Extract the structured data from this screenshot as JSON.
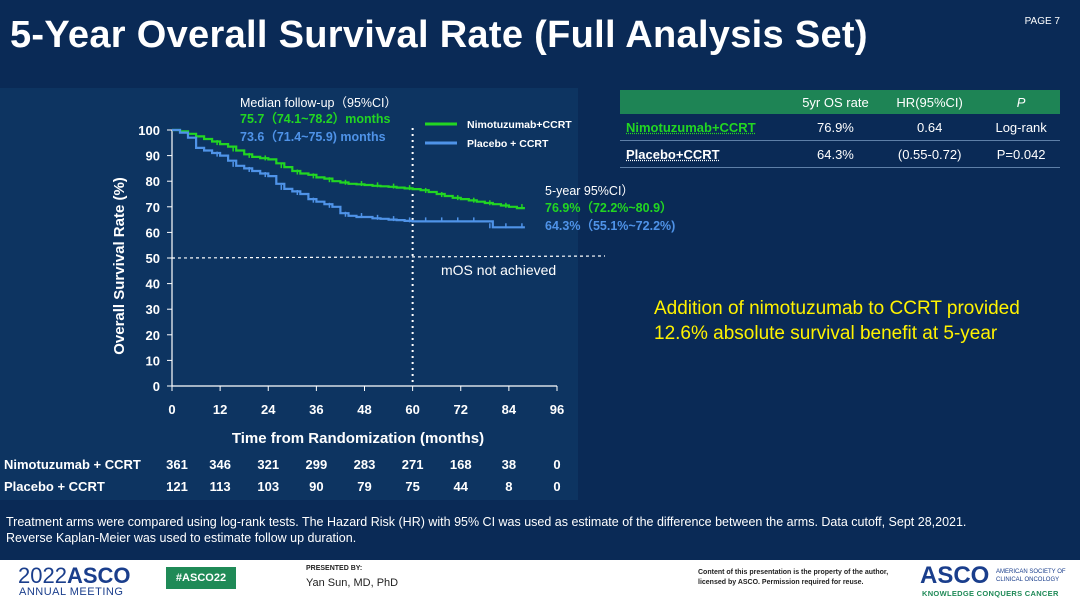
{
  "slide": {
    "title": "5-Year Overall Survival Rate (Full Analysis Set)",
    "page": "PAGE 7",
    "highlight_line1": "Addition of nimotuzumab to CCRT provided",
    "highlight_line2": "12.6% absolute survival benefit at 5-year",
    "footnote_line1": "Treatment arms were compared using log-rank tests. The Hazard Risk (HR) with 95% CI was used as estimate of the difference between the arms. Data cutoff, Sept 28,2021.",
    "footnote_line2": "Reverse Kaplan-Meier was used to estimate follow up duration."
  },
  "colors": {
    "nimo": "#22d622",
    "placebo": "#4f93e8",
    "highlight": "#fff200",
    "table_header": "#1e8455"
  },
  "table": {
    "headers": [
      "",
      "5yr OS rate",
      "HR(95%CI)",
      "P"
    ],
    "rows": [
      {
        "arm": "Nimotuzumab+CCRT",
        "rate": "76.9%",
        "hr": "0.64",
        "p": "Log-rank"
      },
      {
        "arm": "Placebo+CCRT",
        "rate": "64.3%",
        "hr": "(0.55-0.72)",
        "p": "P=0.042"
      }
    ]
  },
  "chart_data": {
    "type": "line",
    "subtype": "kaplan-meier",
    "xlabel": "Time from Randomization (months)",
    "ylabel": "Overall Survival Rate (%)",
    "xlim": [
      0,
      96
    ],
    "ylim": [
      0,
      100
    ],
    "xticks": [
      0,
      12,
      24,
      36,
      48,
      60,
      72,
      84,
      96
    ],
    "yticks": [
      0,
      10,
      20,
      30,
      40,
      50,
      60,
      70,
      80,
      90,
      100
    ],
    "reference_lines": {
      "y50": 50,
      "x60": 60
    },
    "mos_label": "mOS  not achieved",
    "followup": {
      "heading": "Median follow-up（95%CI）",
      "nimo": "75.7（74.1~78.2）months",
      "placebo": "73.6（71.4~75.9) months"
    },
    "five_year": {
      "heading": "5-year 95%CI）",
      "nimo": "76.9%（72.2%~80.9）",
      "placebo": "64.3%（55.1%~72.2%)"
    },
    "legend": [
      "Nimotuzumab+CCRT",
      "Placebo + CCRT"
    ],
    "series": [
      {
        "name": "Nimotuzumab+CCRT",
        "x": [
          0,
          2,
          4,
          6,
          8,
          10,
          12,
          14,
          16,
          18,
          20,
          22,
          24,
          26,
          28,
          30,
          32,
          34,
          36,
          38,
          40,
          42,
          44,
          46,
          48,
          50,
          52,
          54,
          56,
          58,
          60,
          62,
          64,
          66,
          68,
          70,
          72,
          74,
          76,
          78,
          80,
          82,
          84,
          86,
          88
        ],
        "y": [
          100,
          99.5,
          98.5,
          97.5,
          96.5,
          95.5,
          94.5,
          93.5,
          92,
          90.5,
          89.5,
          89,
          88.5,
          87,
          85.5,
          84,
          83,
          82.5,
          81.5,
          81,
          80,
          79.5,
          79,
          78.8,
          78.5,
          78.2,
          78,
          77.8,
          77.5,
          77.2,
          76.9,
          76.5,
          75.8,
          75,
          74.2,
          73.5,
          73,
          72.5,
          72,
          71.5,
          71,
          70.5,
          70,
          69.5,
          69.5
        ]
      },
      {
        "name": "Placebo + CCRT",
        "x": [
          0,
          2,
          4,
          6,
          8,
          10,
          12,
          14,
          16,
          18,
          20,
          22,
          24,
          26,
          28,
          30,
          32,
          34,
          36,
          38,
          40,
          42,
          44,
          46,
          48,
          50,
          52,
          54,
          56,
          58,
          60,
          62,
          64,
          66,
          68,
          70,
          72,
          74,
          76,
          78,
          80,
          82,
          84,
          86,
          88
        ],
        "y": [
          100,
          99,
          97,
          93,
          92,
          91,
          90,
          88,
          86,
          85,
          84,
          83,
          82,
          79,
          77,
          76,
          75,
          73,
          72,
          71,
          70,
          67.5,
          66.5,
          66,
          66,
          65.5,
          65.3,
          65,
          64.8,
          64.5,
          64.3,
          64.3,
          64.3,
          64.3,
          64.3,
          64.3,
          64.3,
          64.3,
          64.3,
          64.3,
          62,
          62,
          62,
          62,
          62
        ]
      }
    ],
    "risk_table": {
      "rows": [
        {
          "label": "Nimotuzumab + CCRT",
          "values": [
            "361",
            "346",
            "321",
            "299",
            "283",
            "271",
            "168",
            "38",
            "0"
          ]
        },
        {
          "label": "Placebo + CCRT",
          "values": [
            "121",
            "113",
            "103",
            "90",
            "79",
            "75",
            "44",
            "8",
            "0"
          ]
        }
      ]
    }
  },
  "footer": {
    "year": "2022",
    "org": "ASCO",
    "meeting": "ANNUAL MEETING",
    "hashtag": "#ASCO22",
    "presented_by": "PRESENTED BY:",
    "presenter": "Yan Sun, MD, PhD",
    "rights": "Content of this presentation is the property of the author, licensed by ASCO. Permission required for reuse.",
    "logo": "ASCO",
    "society": "AMERICAN SOCIETY OF CLINICAL ONCOLOGY",
    "tagline": "KNOWLEDGE CONQUERS CANCER"
  }
}
